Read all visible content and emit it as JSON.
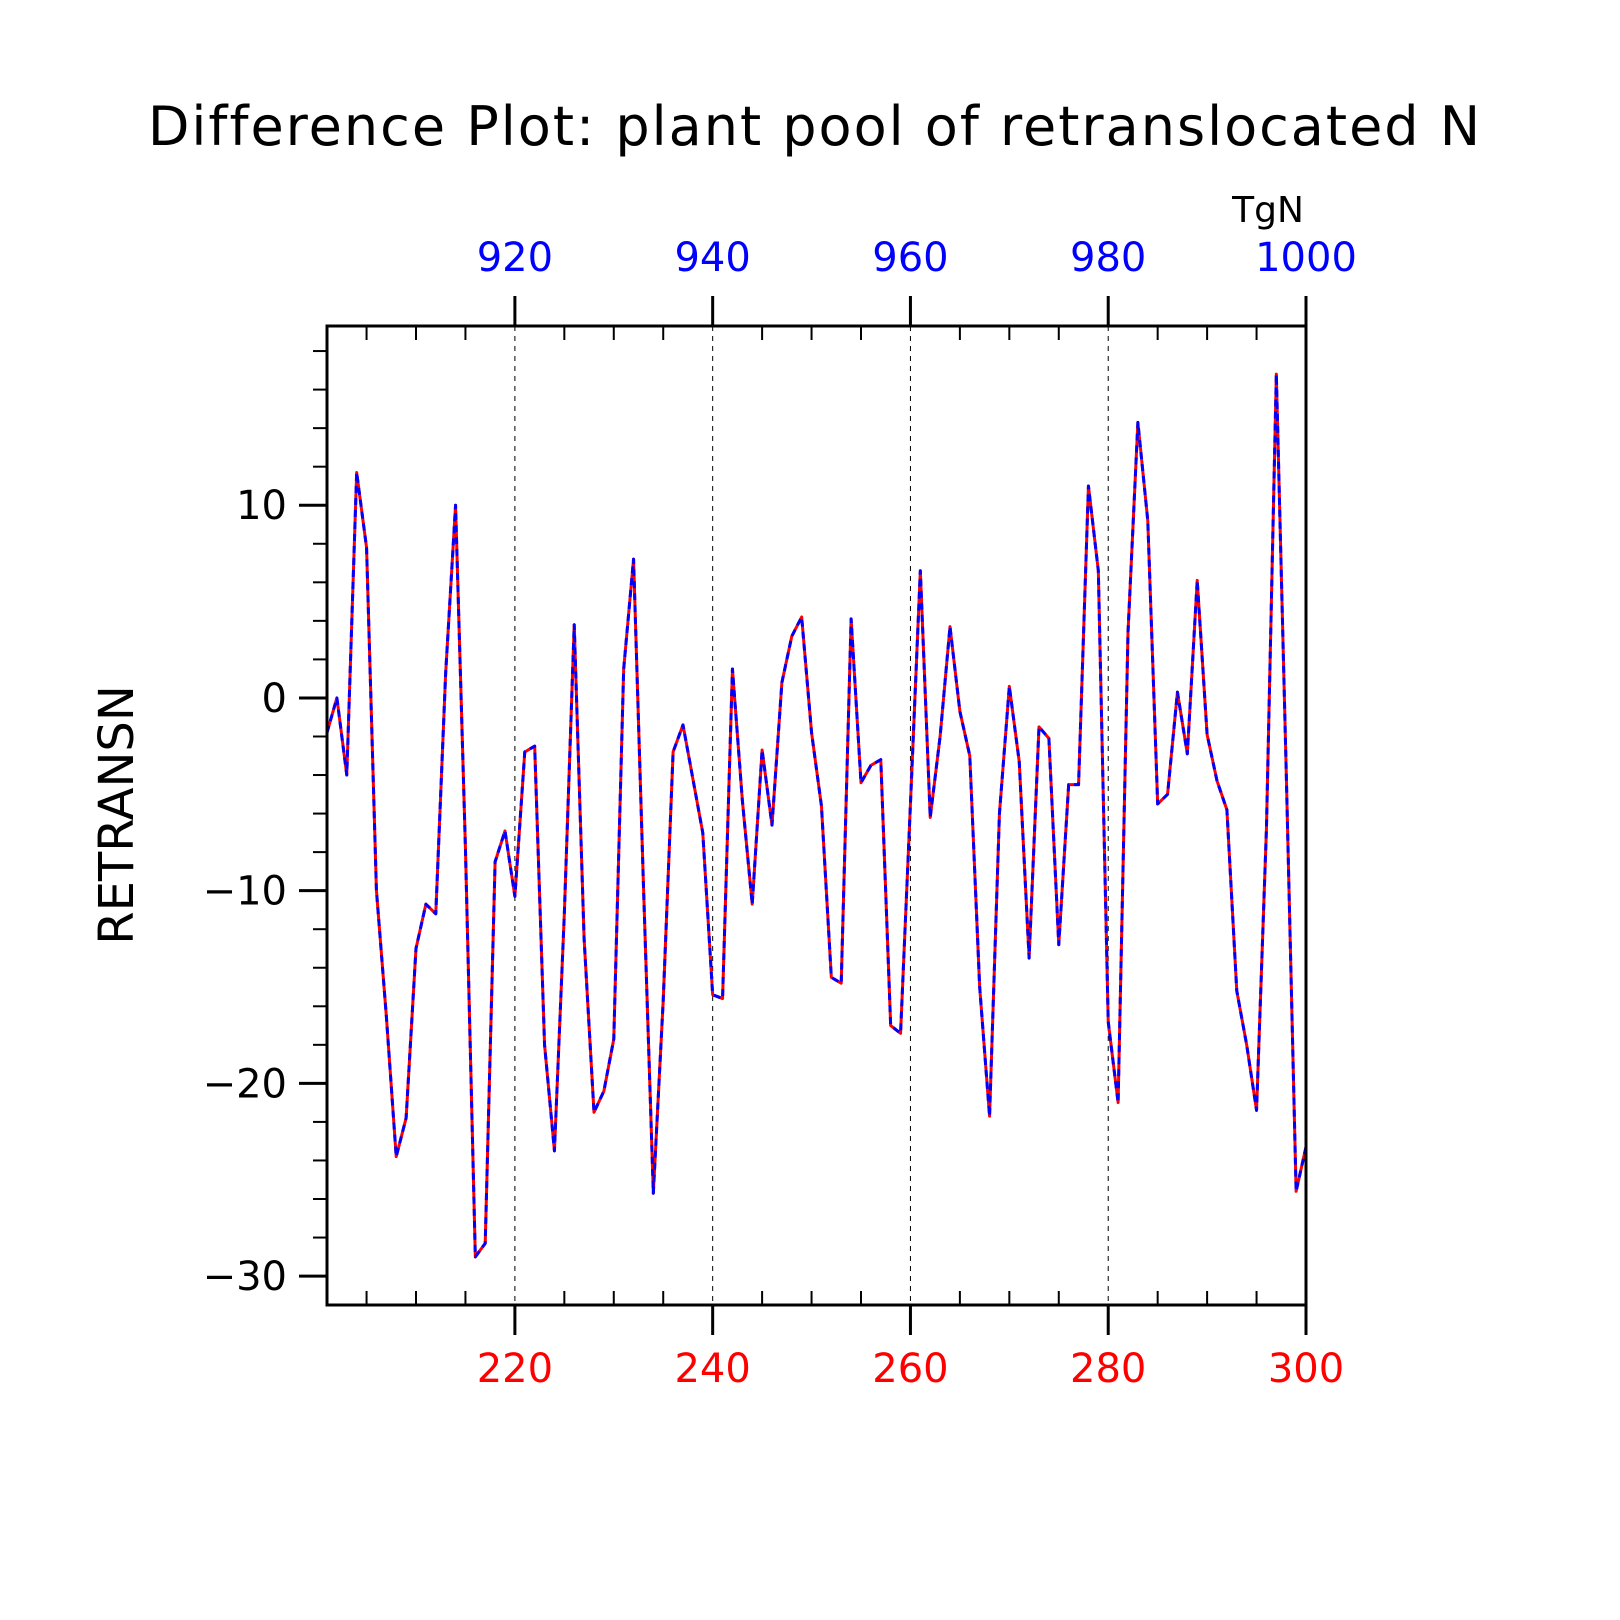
{
  "colors": {
    "bottom_axis": "#ff0000",
    "top_axis": "#0000ff",
    "series_solid": "#ff0000",
    "series_dashed": "#0000ff",
    "frame": "#000000",
    "gridline": "#000000"
  },
  "chart_data": {
    "type": "line",
    "title": "Difference Plot: plant pool of retranslocated N",
    "ylabel": "RETRANSN",
    "units": "TgN",
    "ylim": [
      -31.5,
      19.3
    ],
    "yticks": [
      {
        "value": 10,
        "label": "10"
      },
      {
        "value": 0,
        "label": "0"
      },
      {
        "value": -10,
        "label": "−10"
      },
      {
        "value": -20,
        "label": "−20"
      },
      {
        "value": -30,
        "label": "−30"
      }
    ],
    "y_minor_step": 2,
    "x_bottom": {
      "range": [
        201,
        300
      ],
      "ticks": [
        {
          "value": 220,
          "label": "220"
        },
        {
          "value": 240,
          "label": "240"
        },
        {
          "value": 260,
          "label": "260"
        },
        {
          "value": 280,
          "label": "280"
        },
        {
          "value": 300,
          "label": "300"
        }
      ],
      "minor_step": 5
    },
    "x_top": {
      "range": [
        901,
        1000
      ],
      "ticks": [
        {
          "value": 920,
          "label": "920"
        },
        {
          "value": 940,
          "label": "940"
        },
        {
          "value": 960,
          "label": "960"
        },
        {
          "value": 980,
          "label": "980"
        },
        {
          "value": 1000,
          "label": "1000"
        }
      ],
      "minor_step": 5
    },
    "grid": "vertical dashed at major x ticks",
    "x": [
      201,
      202,
      203,
      204,
      205,
      206,
      207,
      208,
      209,
      210,
      211,
      212,
      213,
      214,
      215,
      216,
      217,
      218,
      219,
      220,
      221,
      222,
      223,
      224,
      225,
      226,
      227,
      228,
      229,
      230,
      231,
      232,
      233,
      234,
      235,
      236,
      237,
      238,
      239,
      240,
      241,
      242,
      243,
      244,
      245,
      246,
      247,
      248,
      249,
      250,
      251,
      252,
      253,
      254,
      255,
      256,
      257,
      258,
      259,
      260,
      261,
      262,
      263,
      264,
      265,
      266,
      267,
      268,
      269,
      270,
      271,
      272,
      273,
      274,
      275,
      276,
      277,
      278,
      279,
      280,
      281,
      282,
      283,
      284,
      285,
      286,
      287,
      288,
      289,
      290,
      291,
      292,
      293,
      294,
      295,
      296,
      297,
      298,
      299,
      300
    ],
    "series": [
      {
        "style": "solid",
        "values": [
          -1.8,
          0,
          -4,
          11.7,
          7.8,
          -10,
          -16.5,
          -23.8,
          -21.8,
          -13,
          -10.7,
          -11.2,
          1.3,
          10,
          -7.8,
          -29,
          -28.3,
          -8.5,
          -6.9,
          -10.3,
          -2.8,
          -2.5,
          -18,
          -23.5,
          -11.2,
          3.8,
          -12.5,
          -21.5,
          -20.4,
          -17.7,
          1.5,
          7.2,
          -9.7,
          -25.7,
          -15.7,
          -2.8,
          -1.4,
          -4.2,
          -7,
          -15.4,
          -15.6,
          1.5,
          -5.3,
          -10.7,
          -2.7,
          -6.6,
          0.8,
          3.2,
          4.2,
          -1.8,
          -5.6,
          -14.5,
          -14.8,
          4.1,
          -4.4,
          -3.5,
          -3.2,
          -17,
          -17.4,
          -5.5,
          6.6,
          -6.2,
          -2,
          3.7,
          -0.7,
          -3,
          -15,
          -21.7,
          -6,
          0.6,
          -3.3,
          -13.5,
          -1.5,
          -2.1,
          -12.8,
          -4.5,
          -4.5,
          11,
          6.6,
          -16.8,
          -21,
          3.4,
          14.3,
          9.2,
          -5.5,
          -5,
          0.3,
          -2.9,
          6.1,
          -1.9,
          -4.3,
          -5.8,
          -15.2,
          -18,
          -21.4,
          -6.8,
          16.8,
          -3.8,
          -25.6,
          -23.3
        ]
      },
      {
        "style": "dashed",
        "values": [
          -1.8,
          0,
          -4,
          11.7,
          7.8,
          -10,
          -16.5,
          -23.8,
          -21.8,
          -13,
          -10.7,
          -11.2,
          1.3,
          10,
          -7.8,
          -29,
          -28.3,
          -8.5,
          -6.9,
          -10.3,
          -2.8,
          -2.5,
          -18,
          -23.5,
          -11.2,
          3.8,
          -12.5,
          -21.5,
          -20.4,
          -17.7,
          1.5,
          7.2,
          -9.7,
          -25.7,
          -15.7,
          -2.8,
          -1.4,
          -4.2,
          -7,
          -15.4,
          -15.6,
          1.5,
          -5.3,
          -10.7,
          -2.7,
          -6.6,
          0.8,
          3.2,
          4.2,
          -1.8,
          -5.6,
          -14.5,
          -14.8,
          4.1,
          -4.4,
          -3.5,
          -3.2,
          -17,
          -17.4,
          -5.5,
          6.6,
          -6.2,
          -2,
          3.7,
          -0.7,
          -3,
          -15,
          -21.7,
          -6,
          0.6,
          -3.3,
          -13.5,
          -1.5,
          -2.1,
          -12.8,
          -4.5,
          -4.5,
          11,
          6.6,
          -16.8,
          -21,
          3.4,
          14.3,
          9.2,
          -5.5,
          -5,
          0.3,
          -2.9,
          6.1,
          -1.9,
          -4.3,
          -5.8,
          -15.2,
          -18,
          -21.4,
          -6.8,
          16.8,
          -3.8,
          -25.6,
          -23.3
        ]
      }
    ]
  }
}
